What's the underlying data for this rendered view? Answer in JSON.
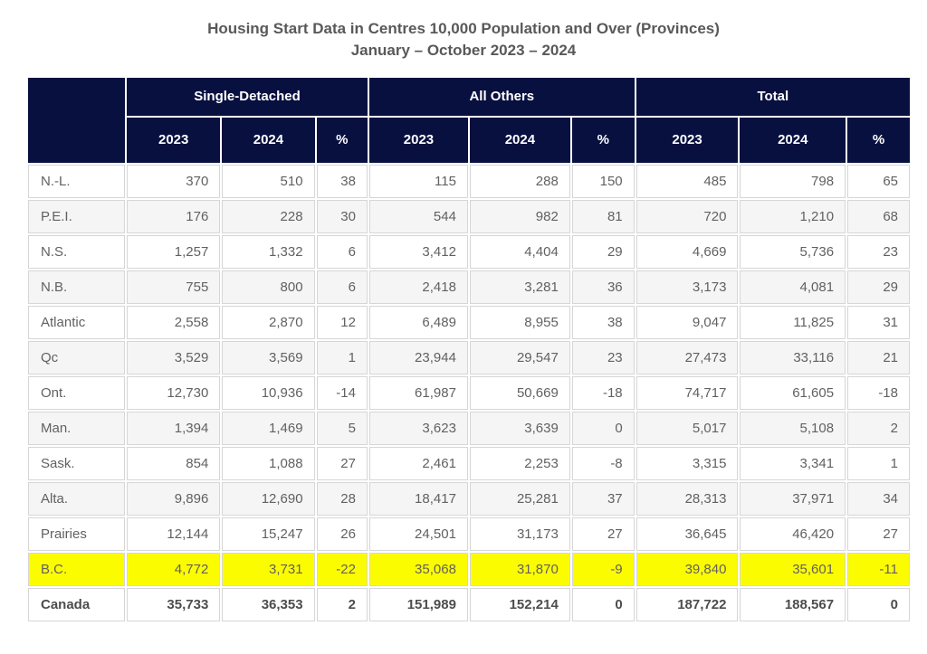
{
  "title": {
    "line1": "Housing Start Data in Centres 10,000 Population and Over (Provinces)",
    "line2": "January – October 2023 – 2024"
  },
  "table": {
    "column_groups": [
      "Single-Detached",
      "All Others",
      "Total"
    ],
    "sub_columns": [
      "2023",
      "2024",
      "%"
    ],
    "rows": [
      {
        "label": "N.-L.",
        "values": [
          "370",
          "510",
          "38",
          "115",
          "288",
          "150",
          "485",
          "798",
          "65"
        ]
      },
      {
        "label": "P.E.I.",
        "values": [
          "176",
          "228",
          "30",
          "544",
          "982",
          "81",
          "720",
          "1,210",
          "68"
        ]
      },
      {
        "label": "N.S.",
        "values": [
          "1,257",
          "1,332",
          "6",
          "3,412",
          "4,404",
          "29",
          "4,669",
          "5,736",
          "23"
        ]
      },
      {
        "label": "N.B.",
        "values": [
          "755",
          "800",
          "6",
          "2,418",
          "3,281",
          "36",
          "3,173",
          "4,081",
          "29"
        ]
      },
      {
        "label": "Atlantic",
        "values": [
          "2,558",
          "2,870",
          "12",
          "6,489",
          "8,955",
          "38",
          "9,047",
          "11,825",
          "31"
        ]
      },
      {
        "label": "Qc",
        "values": [
          "3,529",
          "3,569",
          "1",
          "23,944",
          "29,547",
          "23",
          "27,473",
          "33,116",
          "21"
        ]
      },
      {
        "label": "Ont.",
        "values": [
          "12,730",
          "10,936",
          "-14",
          "61,987",
          "50,669",
          "-18",
          "74,717",
          "61,605",
          "-18"
        ]
      },
      {
        "label": "Man.",
        "values": [
          "1,394",
          "1,469",
          "5",
          "3,623",
          "3,639",
          "0",
          "5,017",
          "5,108",
          "2"
        ]
      },
      {
        "label": "Sask.",
        "values": [
          "854",
          "1,088",
          "27",
          "2,461",
          "2,253",
          "-8",
          "3,315",
          "3,341",
          "1"
        ]
      },
      {
        "label": "Alta.",
        "values": [
          "9,896",
          "12,690",
          "28",
          "18,417",
          "25,281",
          "37",
          "28,313",
          "37,971",
          "34"
        ]
      },
      {
        "label": "Prairies",
        "values": [
          "12,144",
          "15,247",
          "26",
          "24,501",
          "31,173",
          "27",
          "36,645",
          "46,420",
          "27"
        ]
      },
      {
        "label": "B.C.",
        "values": [
          "4,772",
          "3,731",
          "-22",
          "35,068",
          "31,870",
          "-9",
          "39,840",
          "35,601",
          "-11"
        ],
        "highlight": true
      },
      {
        "label": "Canada",
        "values": [
          "35,733",
          "36,353",
          "2",
          "151,989",
          "152,214",
          "0",
          "187,722",
          "188,567",
          "0"
        ],
        "bold": true
      }
    ]
  },
  "colors": {
    "header_bg": "#081040",
    "header_text": "#ffffff",
    "row_alt_bg": "#f5f5f5",
    "highlight_bg": "#fcfc00",
    "cell_border": "#d6d6d6",
    "body_text": "#616161",
    "title_text": "#595959"
  },
  "chart_data": {
    "type": "table",
    "title": "Housing Start Data in Centres 10,000 Population and Over (Provinces)",
    "subtitle": "January – October 2023 – 2024",
    "column_groups": [
      "Single-Detached",
      "All Others",
      "Total"
    ],
    "sub_columns": [
      "2023",
      "2024",
      "%"
    ],
    "row_labels": [
      "N.-L.",
      "P.E.I.",
      "N.S.",
      "N.B.",
      "Atlantic",
      "Qc",
      "Ont.",
      "Man.",
      "Sask.",
      "Alta.",
      "Prairies",
      "B.C.",
      "Canada"
    ],
    "rows": [
      [
        370,
        510,
        38,
        115,
        288,
        150,
        485,
        798,
        65
      ],
      [
        176,
        228,
        30,
        544,
        982,
        81,
        720,
        1210,
        68
      ],
      [
        1257,
        1332,
        6,
        3412,
        4404,
        29,
        4669,
        5736,
        23
      ],
      [
        755,
        800,
        6,
        2418,
        3281,
        36,
        3173,
        4081,
        29
      ],
      [
        2558,
        2870,
        12,
        6489,
        8955,
        38,
        9047,
        11825,
        31
      ],
      [
        3529,
        3569,
        1,
        23944,
        29547,
        23,
        27473,
        33116,
        21
      ],
      [
        12730,
        10936,
        -14,
        61987,
        50669,
        -18,
        74717,
        61605,
        -18
      ],
      [
        1394,
        1469,
        5,
        3623,
        3639,
        0,
        5017,
        5108,
        2
      ],
      [
        854,
        1088,
        27,
        2461,
        2253,
        -8,
        3315,
        3341,
        1
      ],
      [
        9896,
        12690,
        28,
        18417,
        25281,
        37,
        28313,
        37971,
        34
      ],
      [
        12144,
        15247,
        26,
        24501,
        31173,
        27,
        36645,
        46420,
        27
      ],
      [
        4772,
        3731,
        -22,
        35068,
        31870,
        -9,
        39840,
        35601,
        -11
      ],
      [
        35733,
        36353,
        2,
        151989,
        152214,
        0,
        187722,
        188567,
        0
      ]
    ],
    "highlighted_row": "B.C.",
    "totals_row": "Canada"
  }
}
